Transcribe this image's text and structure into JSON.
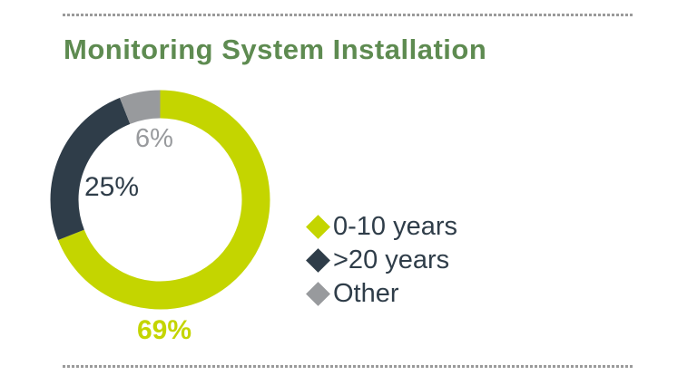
{
  "title": "Monitoring System Installation",
  "colors": {
    "background": "#ffffff",
    "title_green": "#5e8b51",
    "divider_gray": "#9a9a9a",
    "legend_text": "#2f3d49"
  },
  "chart_data": {
    "type": "pie",
    "variant": "donut",
    "title": "Monitoring System Installation",
    "categories": [
      "0-10 years",
      ">20 years",
      "Other"
    ],
    "values": [
      69,
      25,
      6
    ],
    "unit": "%",
    "start_angle_deg": 0,
    "direction": "clockwise",
    "legend_position": "right",
    "segments": [
      {
        "label": "0-10 years",
        "value": 69,
        "display": "69%",
        "color": "#c4d500"
      },
      {
        "label": ">20 years",
        "value": 25,
        "display": "25%",
        "color": "#2f3d49"
      },
      {
        "label": "Other",
        "value": 6,
        "display": "6%",
        "color": "#989a9d"
      }
    ]
  }
}
